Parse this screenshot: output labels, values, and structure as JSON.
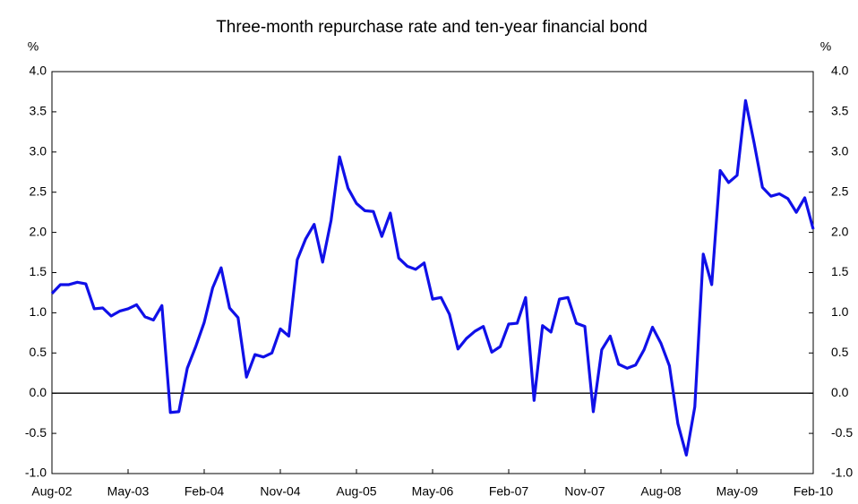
{
  "chart_data": {
    "type": "line",
    "title": "Three-month repurchase rate and ten-year financial bond",
    "y_label": "%",
    "y2_label": "%",
    "categories": [
      "Aug-02",
      null,
      null,
      null,
      null,
      null,
      null,
      null,
      null,
      "May-03",
      null,
      null,
      null,
      null,
      null,
      null,
      null,
      null,
      "Feb-04",
      null,
      null,
      null,
      null,
      null,
      null,
      null,
      null,
      "Nov-04",
      null,
      null,
      null,
      null,
      null,
      null,
      null,
      null,
      "Aug-05",
      null,
      null,
      null,
      null,
      null,
      null,
      null,
      null,
      "May-06",
      null,
      null,
      null,
      null,
      null,
      null,
      null,
      null,
      "Feb-07",
      null,
      null,
      null,
      null,
      null,
      null,
      null,
      null,
      "Nov-07",
      null,
      null,
      null,
      null,
      null,
      null,
      null,
      null,
      "Aug-08",
      null,
      null,
      null,
      null,
      null,
      null,
      null,
      null,
      "May-09",
      null,
      null,
      null,
      null,
      null,
      null,
      null,
      null,
      "Feb-10"
    ],
    "series": [
      {
        "color": "#1010e8",
        "values": [
          1.24,
          1.35,
          1.35,
          1.38,
          1.36,
          1.05,
          1.06,
          0.96,
          1.02,
          1.05,
          1.1,
          0.95,
          0.91,
          1.09,
          -0.24,
          -0.23,
          0.31,
          0.58,
          0.88,
          1.31,
          1.56,
          1.06,
          0.94,
          0.2,
          0.48,
          0.45,
          0.5,
          0.8,
          0.71,
          1.66,
          1.92,
          2.1,
          1.63,
          2.15,
          2.94,
          2.55,
          2.36,
          2.27,
          2.26,
          1.95,
          2.24,
          1.68,
          1.58,
          1.54,
          1.62,
          1.17,
          1.19,
          0.98,
          0.55,
          0.68,
          0.77,
          0.83,
          0.51,
          0.58,
          0.86,
          0.87,
          1.19,
          -0.09,
          0.84,
          0.76,
          1.17,
          1.19,
          0.87,
          0.83,
          -0.23,
          0.54,
          0.71,
          0.36,
          0.31,
          0.35,
          0.54,
          0.82,
          0.62,
          0.34,
          -0.38,
          -0.77,
          -0.17,
          1.73,
          1.35,
          2.77,
          2.62,
          2.71,
          3.64,
          3.12,
          2.56,
          2.45,
          2.48,
          2.42,
          2.25,
          2.43,
          2.04
        ]
      }
    ],
    "ylim": [
      -1,
      4
    ],
    "yticks": [
      {
        "value": -1,
        "label": "-1.0"
      },
      {
        "value": -0.5,
        "label": "-0.5"
      },
      {
        "value": 0,
        "label": "0.0"
      },
      {
        "value": 0.5,
        "label": "0.5"
      },
      {
        "value": 1,
        "label": "1.0"
      },
      {
        "value": 1.5,
        "label": "1.5"
      },
      {
        "value": 2,
        "label": "2.0"
      },
      {
        "value": 2.5,
        "label": "2.5"
      },
      {
        "value": 3,
        "label": "3.0"
      },
      {
        "value": 3.5,
        "label": "3.5"
      },
      {
        "value": 4,
        "label": "4.0"
      }
    ],
    "y2lim": [
      -1,
      4
    ],
    "y2ticks": [
      {
        "value": -1,
        "label": "-1.0"
      },
      {
        "value": -0.5,
        "label": "-0.5"
      },
      {
        "value": 0,
        "label": "0.0"
      },
      {
        "value": 0.5,
        "label": "0.5"
      },
      {
        "value": 1,
        "label": "1.0"
      },
      {
        "value": 1.5,
        "label": "1.5"
      },
      {
        "value": 2,
        "label": "2.0"
      },
      {
        "value": 2.5,
        "label": "2.5"
      },
      {
        "value": 3,
        "label": "3.0"
      },
      {
        "value": 3.5,
        "label": "3.5"
      },
      {
        "value": 4,
        "label": "4.0"
      }
    ]
  }
}
